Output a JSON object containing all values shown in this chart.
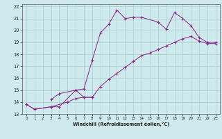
{
  "xlabel": "Windchill (Refroidissement éolien,°C)",
  "background_color": "#ceeaed",
  "line_color": "#882288",
  "xlim": [
    -0.5,
    23.5
  ],
  "ylim": [
    13,
    22.2
  ],
  "xticks": [
    0,
    1,
    2,
    3,
    4,
    5,
    6,
    7,
    8,
    9,
    10,
    11,
    12,
    13,
    14,
    15,
    16,
    17,
    18,
    19,
    20,
    21,
    22,
    23
  ],
  "yticks": [
    13,
    14,
    15,
    16,
    17,
    18,
    19,
    20,
    21,
    22
  ],
  "grid_color": "#aacccc",
  "line1_x": [
    0,
    1,
    3,
    4,
    6,
    7,
    8
  ],
  "line1_y": [
    13.8,
    13.4,
    13.6,
    13.6,
    15.0,
    14.4,
    14.4
  ],
  "line2_x": [
    3,
    4,
    6,
    7,
    8,
    9,
    10,
    11,
    12,
    13,
    14,
    16,
    17,
    18,
    19,
    20,
    21,
    22,
    23
  ],
  "line2_y": [
    14.2,
    14.7,
    15.0,
    15.1,
    17.5,
    19.8,
    20.5,
    21.7,
    21.0,
    21.1,
    21.1,
    20.7,
    20.1,
    21.5,
    21.0,
    20.4,
    19.4,
    19.0,
    19.0
  ],
  "line3_x": [
    0,
    1,
    3,
    5,
    6,
    7,
    8,
    9,
    10,
    11,
    12,
    13,
    14,
    15,
    16,
    17,
    18,
    19,
    20,
    21,
    22,
    23
  ],
  "line3_y": [
    13.8,
    13.4,
    13.6,
    14.0,
    14.3,
    14.4,
    14.4,
    15.3,
    15.9,
    16.4,
    16.9,
    17.4,
    17.9,
    18.1,
    18.4,
    18.7,
    19.0,
    19.3,
    19.5,
    19.1,
    18.9,
    18.9
  ]
}
